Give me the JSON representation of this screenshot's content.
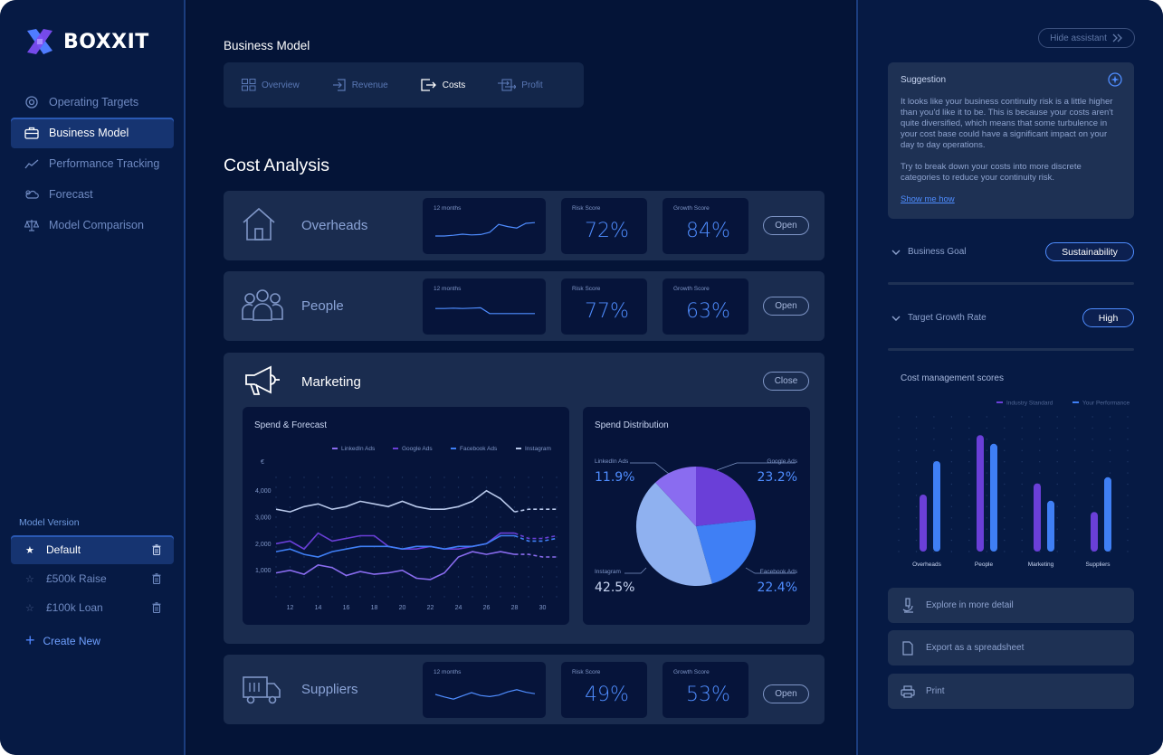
{
  "app": {
    "name": "BOXXIT"
  },
  "sidebar": {
    "nav": [
      {
        "label": "Operating Targets",
        "icon": "target-icon"
      },
      {
        "label": "Business Model",
        "icon": "briefcase-icon",
        "active": true
      },
      {
        "label": "Performance Tracking",
        "icon": "trend-icon"
      },
      {
        "label": "Forecast",
        "icon": "weather-icon"
      },
      {
        "label": "Model Comparison",
        "icon": "scales-icon"
      }
    ],
    "model_version_label": "Model Version",
    "versions": [
      {
        "label": "Default",
        "active": true
      },
      {
        "label": "£500k Raise"
      },
      {
        "label": "£100k Loan"
      }
    ],
    "create_new": "Create New"
  },
  "main": {
    "section_title": "Business Model",
    "tabs": [
      {
        "label": "Overview",
        "icon": "grid-icon"
      },
      {
        "label": "Revenue",
        "icon": "login-icon"
      },
      {
        "label": "Costs",
        "icon": "logout-icon",
        "active": true
      },
      {
        "label": "Profit",
        "icon": "exchange-icon"
      }
    ],
    "cost_analysis_title": "Cost Analysis",
    "cards": {
      "overheads": {
        "name": "Overheads",
        "months_label": "12 months",
        "risk_label": "Risk Score",
        "risk": "72%",
        "growth_label": "Growth Score",
        "growth": "84%",
        "button": "Open"
      },
      "people": {
        "name": "People",
        "months_label": "12 months",
        "risk_label": "Risk Score",
        "risk": "77%",
        "growth_label": "Growth Score",
        "growth": "63%",
        "button": "Open"
      },
      "marketing": {
        "name": "Marketing",
        "button": "Close"
      },
      "suppliers": {
        "name": "Suppliers",
        "months_label": "12 months",
        "risk_label": "Risk Score",
        "risk": "49%",
        "growth_label": "Growth Score",
        "growth": "53%",
        "button": "Open"
      }
    },
    "spend_forecast": {
      "title": "Spend & Forecast"
    },
    "spend_distribution": {
      "title": "Spend Distribution"
    }
  },
  "assistant": {
    "hide_label": "Hide assistant",
    "suggestion_title": "Suggestion",
    "suggestion_p1": "It looks like your business continuity risk is a little higher than you'd like it to be. This is because your costs aren't quite diversified, which means that some turbulence in your cost base could have a significant impact on your day to day operations.",
    "suggestion_p2": "Try to break down your costs into more discrete categories to reduce your continuity risk.",
    "suggestion_link": "Show me how",
    "business_goal_label": "Business Goal",
    "business_goal_value": "Sustainability",
    "growth_rate_label": "Target Growth Rate",
    "growth_rate_value": "High",
    "scores_title": "Cost management scores",
    "actions": [
      {
        "label": "Explore in more detail",
        "icon": "microscope-icon"
      },
      {
        "label": "Export as a spreadsheet",
        "icon": "file-icon"
      },
      {
        "label": "Print",
        "icon": "printer-icon"
      }
    ]
  },
  "colors": {
    "linkedin": "#8a6cf0",
    "google": "#6a3fd8",
    "facebook": "#3f7ff5",
    "instagram": "#b8c8ea",
    "industry": "#6a3fd8",
    "performance": "#3f7ff5"
  },
  "chart_data": [
    {
      "id": "spend-forecast",
      "type": "line",
      "title": "Spend & Forecast",
      "ylabel": "€",
      "x": [
        11,
        12,
        13,
        14,
        15,
        16,
        17,
        18,
        19,
        20,
        21,
        22,
        23,
        24,
        25,
        26,
        27,
        28,
        29,
        30,
        31
      ],
      "xticks": [
        12,
        14,
        16,
        18,
        20,
        22,
        24,
        26,
        28,
        30
      ],
      "yticks": [
        1000,
        2000,
        3000,
        4000
      ],
      "ytick_labels": [
        "1,000",
        "2,000",
        "3,000",
        "4,000"
      ],
      "ylim": [
        0,
        4500
      ],
      "forecast_from": 28,
      "series": [
        {
          "name": "LinkedIn Ads",
          "color": "#8a6cf0",
          "values": [
            900,
            1000,
            850,
            1200,
            1100,
            800,
            950,
            850,
            900,
            1000,
            700,
            650,
            900,
            1500,
            1700,
            1600,
            1700,
            1600,
            1600,
            1500,
            1500
          ]
        },
        {
          "name": "Google Ads",
          "color": "#6a3fd8",
          "values": [
            2000,
            2100,
            1800,
            2400,
            2100,
            2200,
            2300,
            2300,
            1900,
            1800,
            1800,
            1900,
            1800,
            1800,
            1900,
            2000,
            2400,
            2400,
            2200,
            2200,
            2300
          ]
        },
        {
          "name": "Facebook Ads",
          "color": "#3f7ff5",
          "values": [
            1700,
            1800,
            1600,
            1500,
            1700,
            1800,
            1900,
            1900,
            1900,
            1800,
            1900,
            1900,
            1800,
            1900,
            1900,
            2000,
            2300,
            2300,
            2100,
            2100,
            2200
          ]
        },
        {
          "name": "Instagram",
          "color": "#b8c8ea",
          "values": [
            3300,
            3200,
            3400,
            3500,
            3300,
            3400,
            3600,
            3500,
            3400,
            3600,
            3400,
            3300,
            3300,
            3400,
            3600,
            4000,
            3700,
            3200,
            3300,
            3300,
            3300
          ]
        }
      ]
    },
    {
      "id": "spend-distribution",
      "type": "pie",
      "title": "Spend Distribution",
      "slices": [
        {
          "label": "Google Ads",
          "value": 23.2,
          "display": "23.2%",
          "color": "#6a3fd8"
        },
        {
          "label": "Facebook Ads",
          "value": 22.4,
          "display": "22.4%",
          "color": "#3f7ff5"
        },
        {
          "label": "Instagram",
          "value": 42.5,
          "display": "42.5%",
          "color": "#8fb1f0"
        },
        {
          "label": "LinkedIn Ads",
          "value": 11.9,
          "display": "11.9%",
          "color": "#8a6cf0"
        }
      ]
    },
    {
      "id": "cost-management-scores",
      "type": "bar",
      "title": "Cost management scores",
      "categories": [
        "Overheads",
        "People",
        "Marketing",
        "Suppliers"
      ],
      "ylim": [
        0,
        100
      ],
      "series": [
        {
          "name": "Industry Standard",
          "color": "#6a3fd8",
          "values": [
            46,
            94,
            55,
            32
          ]
        },
        {
          "name": "Your Performance",
          "color": "#3f7ff5",
          "values": [
            73,
            87,
            41,
            60
          ]
        }
      ]
    },
    {
      "id": "overheads-12m",
      "type": "line",
      "title": "12 months",
      "x": [
        1,
        2,
        3,
        4,
        5,
        6,
        7,
        8,
        9,
        10,
        11,
        12
      ],
      "series": [
        {
          "values": [
            3,
            3,
            3.2,
            3.5,
            3.3,
            3.4,
            4,
            6.2,
            5.6,
            5.2,
            6.5,
            6.7
          ]
        }
      ]
    },
    {
      "id": "people-12m",
      "type": "line",
      "title": "12 months",
      "x": [
        1,
        2,
        3,
        4,
        5,
        6,
        7,
        8,
        9,
        10,
        11,
        12
      ],
      "series": [
        {
          "values": [
            5.2,
            5.2,
            5.3,
            5.2,
            5.3,
            5.4,
            3.8,
            3.8,
            3.8,
            3.8,
            3.8,
            3.8
          ]
        }
      ]
    },
    {
      "id": "suppliers-12m",
      "type": "line",
      "title": "12 months",
      "x": [
        1,
        2,
        3,
        4,
        5,
        6,
        7,
        8,
        9,
        10,
        11,
        12
      ],
      "series": [
        {
          "values": [
            4.5,
            3.8,
            3.2,
            4.1,
            5.0,
            4.2,
            3.9,
            4.3,
            5.2,
            5.8,
            5.1,
            4.7
          ]
        }
      ]
    }
  ]
}
